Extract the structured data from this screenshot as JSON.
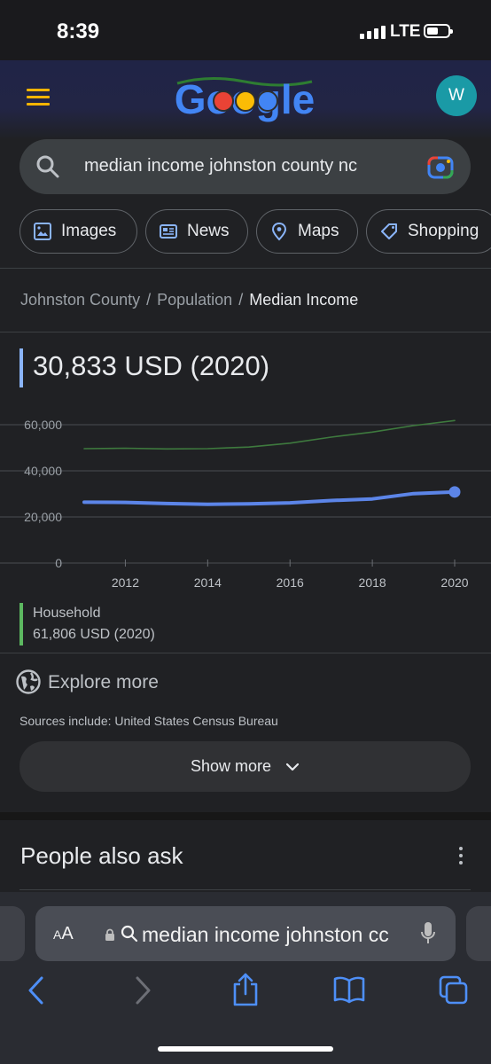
{
  "status_bar": {
    "time": "8:39",
    "network": "LTE"
  },
  "header": {
    "logo_text": "Google",
    "avatar_letter": "W"
  },
  "search": {
    "query": "median income johnston county nc"
  },
  "chips": [
    {
      "label": "Images",
      "icon": "image-icon"
    },
    {
      "label": "News",
      "icon": "news-icon"
    },
    {
      "label": "Maps",
      "icon": "map-pin-icon"
    },
    {
      "label": "Shopping",
      "icon": "tag-icon"
    }
  ],
  "breadcrumb": {
    "items": [
      "Johnston County",
      "Population"
    ],
    "separator": "/",
    "current": "Median Income"
  },
  "headline_value": "30,833 USD (2020)",
  "chart_data": {
    "type": "line",
    "x": [
      2011,
      2012,
      2013,
      2014,
      2015,
      2016,
      2017,
      2018,
      2019,
      2020
    ],
    "x_ticks": [
      "2012",
      "2014",
      "2016",
      "2018",
      "2020"
    ],
    "y_ticks": [
      "60,000",
      "40,000",
      "20,000",
      "0"
    ],
    "ylim": [
      0,
      60000
    ],
    "grid": true,
    "series": [
      {
        "name": "",
        "color": "#5c85e8",
        "values": [
          26400,
          26300,
          25800,
          25500,
          25700,
          26100,
          27100,
          27800,
          30100,
          30833
        ]
      },
      {
        "name": "Household",
        "color": "#3e7a3e",
        "values": [
          49600,
          49800,
          49500,
          49600,
          50300,
          52000,
          54600,
          56800,
          59600,
          61806
        ]
      }
    ]
  },
  "legend": {
    "name": "Household",
    "value": "61,806 USD (2020)"
  },
  "explore": {
    "label": "Explore more",
    "sources": "Sources include: United States Census Bureau"
  },
  "show_more": {
    "label": "Show more"
  },
  "people_also_ask": {
    "title": "People also ask"
  },
  "safari": {
    "aa_label_small": "A",
    "aa_label": "A",
    "address": "median income johnston cc"
  },
  "colors": {
    "accent": "#8ab4f8",
    "household": "#5cb860",
    "background": "#202124"
  }
}
